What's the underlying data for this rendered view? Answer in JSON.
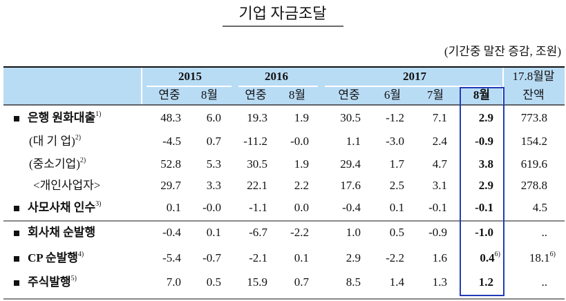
{
  "title": "기업 자금조달",
  "unit_note": "(기간중 말잔 증감, 조원)",
  "header": {
    "groups": [
      "2015",
      "2016",
      "2017"
    ],
    "subheaders": [
      "연중",
      "8월",
      "연중",
      "8월",
      "연중",
      "6월",
      "7월",
      "8월"
    ],
    "last_column": [
      "17.8월말",
      "잔액"
    ]
  },
  "rows": [
    {
      "label": "은행 원화대출",
      "note": "1)",
      "cells": [
        "48.3",
        "6.0",
        "19.3",
        "1.9",
        "30.5",
        "-1.2",
        "7.1",
        "2.9",
        "773.8"
      ]
    },
    {
      "label": "(대 기 업)",
      "note": "2)",
      "cells": [
        "-4.5",
        "0.7",
        "-11.2",
        "-0.0",
        "1.1",
        "-3.0",
        "2.4",
        "-0.9",
        "154.2"
      ]
    },
    {
      "label": "(중소기업)",
      "note": "2)",
      "cells": [
        "52.8",
        "5.3",
        "30.5",
        "1.9",
        "29.4",
        "1.7",
        "4.7",
        "3.8",
        "619.6"
      ]
    },
    {
      "label": "<개인사업자>",
      "cells": [
        "29.7",
        "3.3",
        "22.1",
        "2.2",
        "17.6",
        "2.5",
        "3.1",
        "2.9",
        "278.8"
      ]
    },
    {
      "label": "사모사채 인수",
      "note": "3)",
      "cells": [
        "0.1",
        "-0.0",
        "-1.1",
        "0.0",
        "-0.4",
        "0.1",
        "-0.1",
        "-0.1",
        "4.5"
      ]
    },
    {
      "label": "회사채 순발행",
      "cells": [
        "-0.4",
        "0.1",
        "-6.7",
        "-2.2",
        "1.0",
        "0.5",
        "-0.9",
        "-1.0",
        ".."
      ]
    },
    {
      "label": "CP 순발행",
      "note": "4)",
      "cells": [
        "-5.4",
        "-0.7",
        "-2.1",
        "0.1",
        "2.9",
        "-2.2",
        "1.6",
        {
          "text": "0.4",
          "note": "6)"
        },
        {
          "text": "18.1",
          "note": "6)"
        }
      ]
    },
    {
      "label": "주식발행",
      "note": "5)",
      "cells": [
        "7.0",
        "0.5",
        "15.9",
        "0.7",
        "8.5",
        "1.4",
        "1.3",
        "1.2",
        ".."
      ]
    }
  ]
}
